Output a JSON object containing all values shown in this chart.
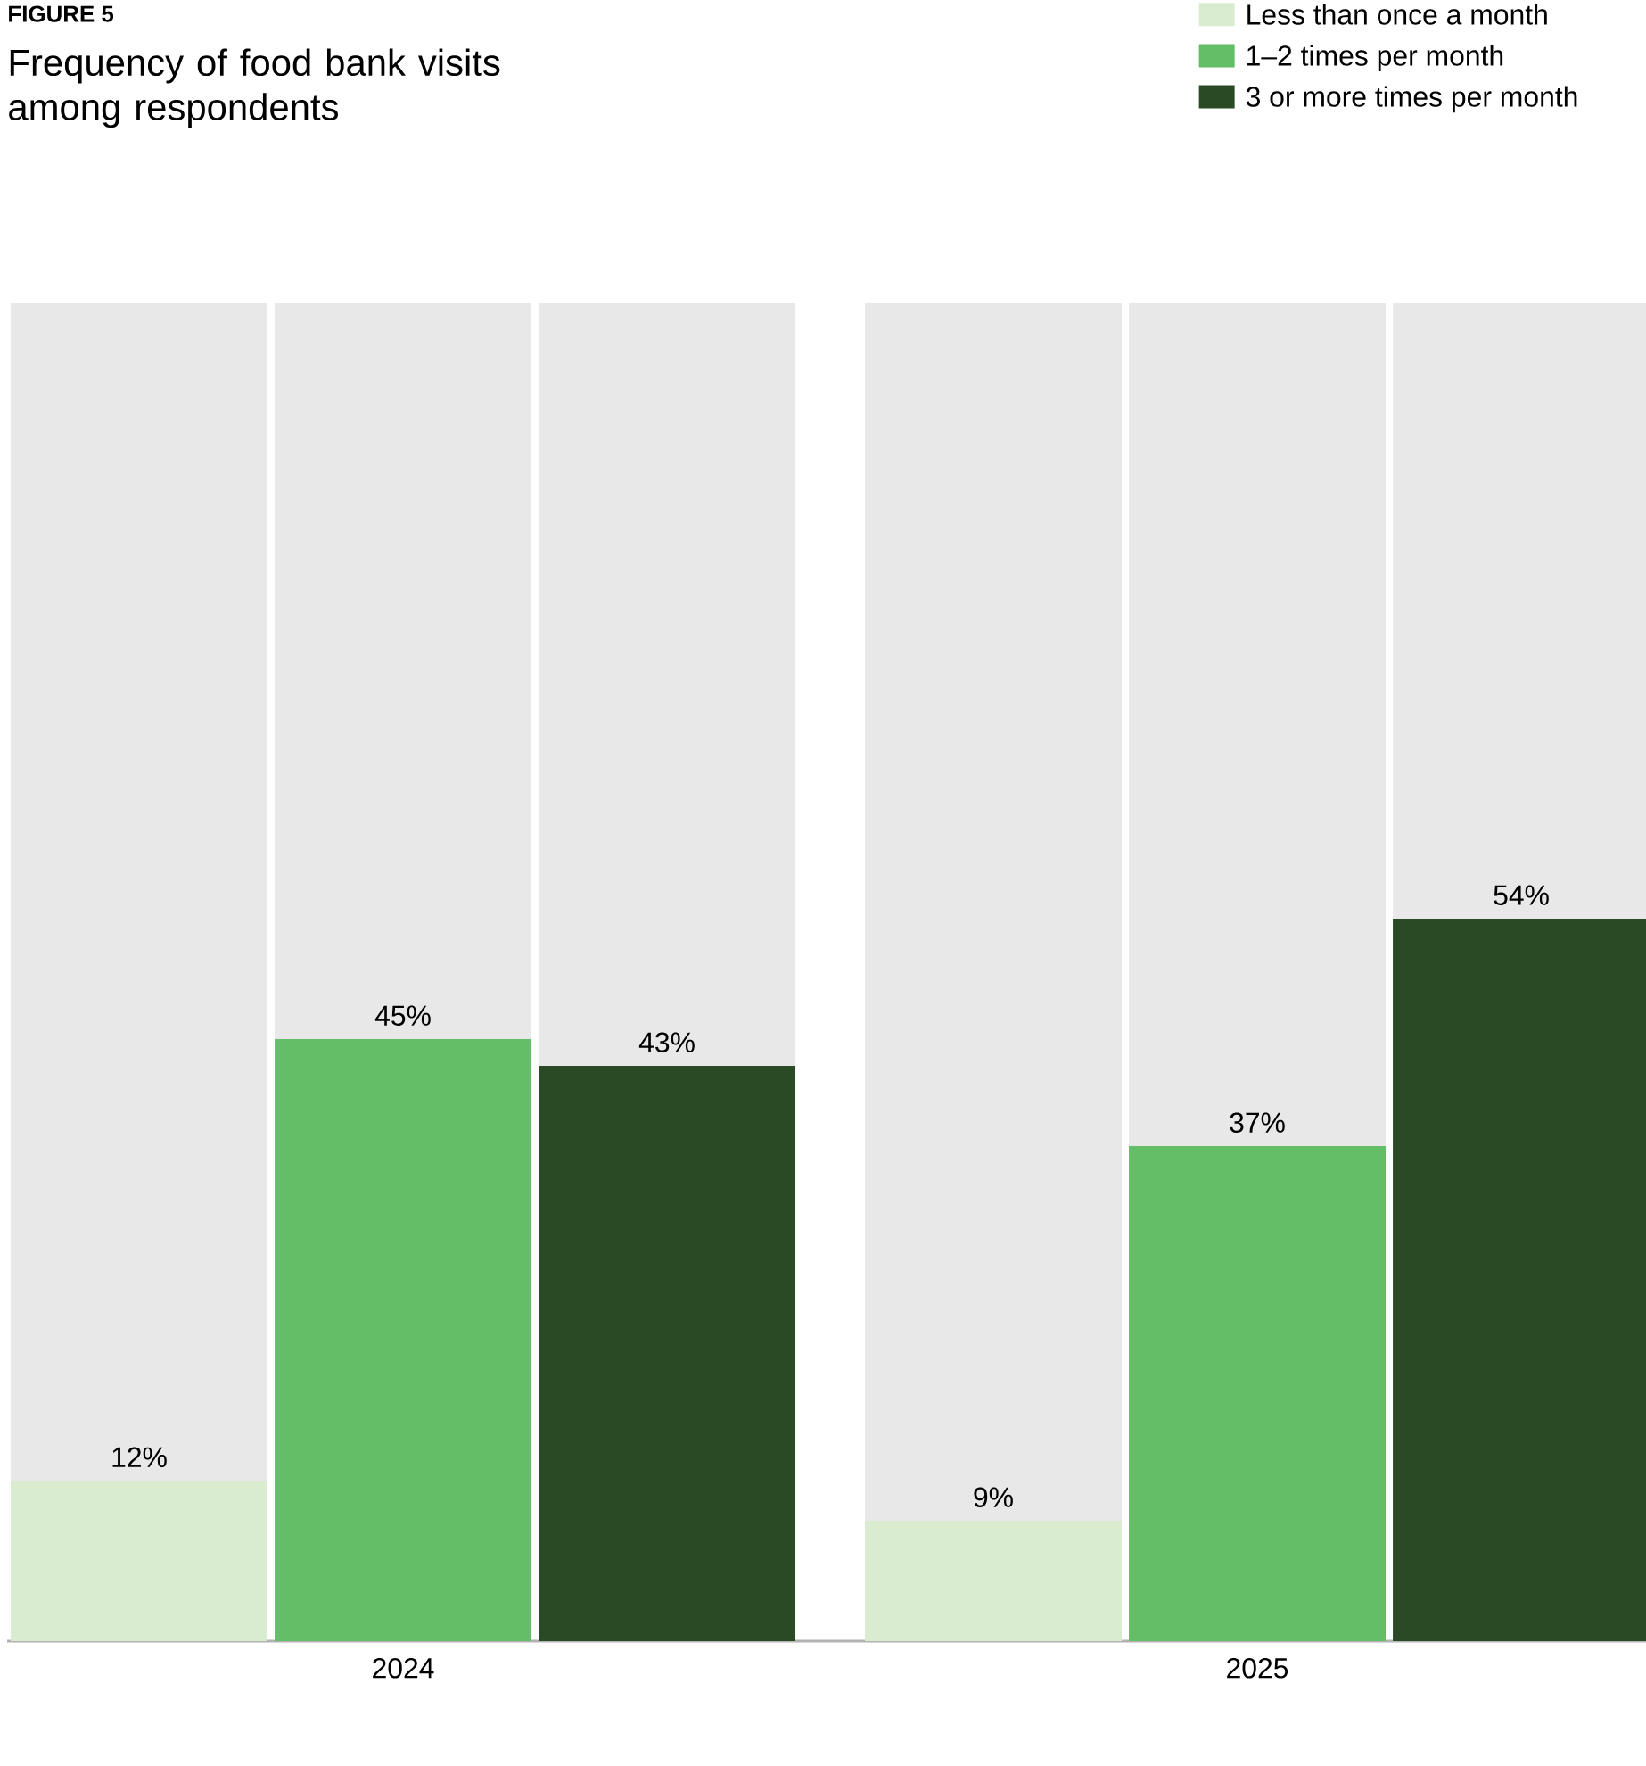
{
  "chart_data": {
    "type": "bar",
    "title": "Frequency of food bank visits among respondents",
    "annotations": [
      "FIGURE 5"
    ],
    "categories": [
      "2024",
      "2025"
    ],
    "ylim": [
      0,
      100
    ],
    "tick_labels": "x",
    "legend": "top right",
    "series": [
      {
        "name": "Less than once a month",
        "color": "#d9ecd0",
        "values": [
          12,
          9
        ],
        "value_labels": [
          "12%",
          "9%"
        ]
      },
      {
        "name": "1–2 times per month",
        "color": "#63be67",
        "values": [
          45,
          37
        ],
        "value_labels": [
          "45%",
          "37%"
        ]
      },
      {
        "name": "3 or more times per month",
        "color": "#2a4a25",
        "values": [
          43,
          54
        ],
        "value_labels": [
          "43%",
          "54%"
        ]
      }
    ]
  }
}
